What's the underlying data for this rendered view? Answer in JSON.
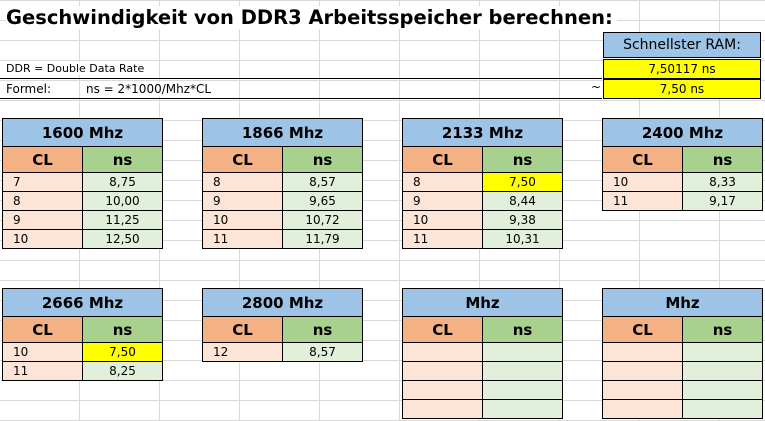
{
  "title": "Geschwindigkeit von DDR3 Arbeitsspeicher berechnen:",
  "notes": {
    "ddr": "DDR = Double Data Rate",
    "formel_label": "Formel:",
    "formel": "ns = 2*1000/Mhz*CL"
  },
  "fastest": {
    "label": "Schnellster RAM:",
    "exact": "7,50117 ns",
    "approx_symbol": "~",
    "rounded": "7,50 ns"
  },
  "colors": {
    "header_blue": "#9dc3e6",
    "cl_orange": "#f4b183",
    "ns_green": "#a9d18e",
    "cl_row": "#fce4d6",
    "ns_row": "#e2efda",
    "highlight": "#ffff00"
  },
  "tables": [
    {
      "header": "1600 Mhz",
      "cl_label": "CL",
      "ns_label": "ns",
      "rows": [
        {
          "cl": "7",
          "ns": "8,75"
        },
        {
          "cl": "8",
          "ns": "10,00"
        },
        {
          "cl": "9",
          "ns": "11,25"
        },
        {
          "cl": "10",
          "ns": "12,50"
        }
      ]
    },
    {
      "header": "1866 Mhz",
      "cl_label": "CL",
      "ns_label": "ns",
      "rows": [
        {
          "cl": "8",
          "ns": "8,57"
        },
        {
          "cl": "9",
          "ns": "9,65"
        },
        {
          "cl": "10",
          "ns": "10,72"
        },
        {
          "cl": "11",
          "ns": "11,79"
        }
      ]
    },
    {
      "header": "2133 Mhz",
      "cl_label": "CL",
      "ns_label": "ns",
      "rows": [
        {
          "cl": "8",
          "ns": "7,50",
          "highlight": true
        },
        {
          "cl": "9",
          "ns": "8,44"
        },
        {
          "cl": "10",
          "ns": "9,38"
        },
        {
          "cl": "11",
          "ns": "10,31"
        }
      ]
    },
    {
      "header": "2400 Mhz",
      "cl_label": "CL",
      "ns_label": "ns",
      "rows": [
        {
          "cl": "10",
          "ns": "8,33"
        },
        {
          "cl": "11",
          "ns": "9,17"
        }
      ]
    },
    {
      "header": "2666 Mhz",
      "cl_label": "CL",
      "ns_label": "ns",
      "rows": [
        {
          "cl": "10",
          "ns": "7,50",
          "highlight": true
        },
        {
          "cl": "11",
          "ns": "8,25"
        }
      ]
    },
    {
      "header": "2800 Mhz",
      "cl_label": "CL",
      "ns_label": "ns",
      "rows": [
        {
          "cl": "12",
          "ns": "8,57"
        }
      ]
    },
    {
      "header": "Mhz",
      "cl_label": "CL",
      "ns_label": "ns",
      "rows": [
        {
          "cl": "",
          "ns": ""
        },
        {
          "cl": "",
          "ns": ""
        },
        {
          "cl": "",
          "ns": ""
        },
        {
          "cl": "",
          "ns": ""
        }
      ]
    },
    {
      "header": "Mhz",
      "cl_label": "CL",
      "ns_label": "ns",
      "rows": [
        {
          "cl": "",
          "ns": ""
        },
        {
          "cl": "",
          "ns": ""
        },
        {
          "cl": "",
          "ns": ""
        },
        {
          "cl": "",
          "ns": ""
        }
      ]
    }
  ]
}
